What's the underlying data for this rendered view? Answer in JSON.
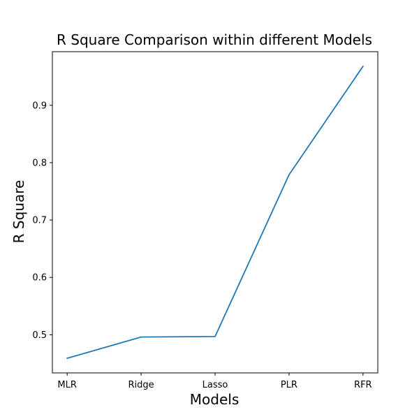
{
  "chart_data": {
    "type": "line",
    "title": "R Square Comparison within different Models",
    "xlabel": "Models",
    "ylabel": "R Square",
    "categories": [
      "MLR",
      "Ridge",
      "Lasso",
      "PLR",
      "RFR"
    ],
    "series": [
      {
        "values": [
          0.459,
          0.496,
          0.497,
          0.779,
          0.968
        ],
        "color": "#1f77b4"
      }
    ],
    "ylim": [
      0.4335,
      0.9935
    ],
    "yticks": [
      0.5,
      0.6,
      0.7,
      0.8,
      0.9
    ],
    "ytick_labels": [
      "0.5",
      "0.6",
      "0.7",
      "0.8",
      "0.9"
    ],
    "grid": false,
    "legend": "none"
  }
}
